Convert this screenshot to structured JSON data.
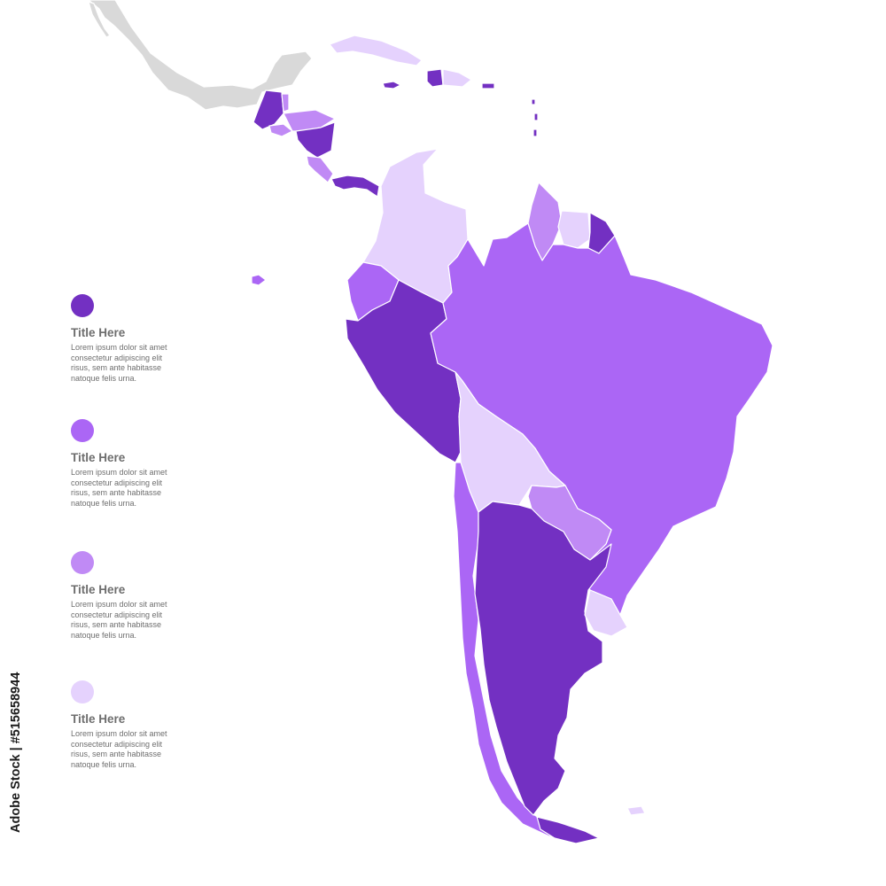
{
  "colors": {
    "level1": "#7330c2",
    "level2": "#ab66f5",
    "level3": "#c08af5",
    "level4": "#e5d2fd",
    "neutral": "#d9d9d9",
    "background": "#ffffff"
  },
  "legend": [
    {
      "color": "#7330c2",
      "title": "Title Here",
      "desc": "Lorem ipsum dolor sit amet consectetur adipiscing elit risus, sem ante habitasse natoque felis urna."
    },
    {
      "color": "#ab66f5",
      "title": "Title Here",
      "desc": "Lorem ipsum dolor sit amet consectetur adipiscing elit risus, sem ante habitasse natoque felis urna."
    },
    {
      "color": "#c08af5",
      "title": "Title Here",
      "desc": "Lorem ipsum dolor sit amet consectetur adipiscing elit risus, sem ante habitasse natoque felis urna."
    },
    {
      "color": "#e5d2fd",
      "title": "Title Here",
      "desc": "Lorem ipsum dolor sit amet consectetur adipiscing elit risus, sem ante habitasse natoque felis urna."
    }
  ],
  "stock_label": "Adobe Stock | #515658944"
}
